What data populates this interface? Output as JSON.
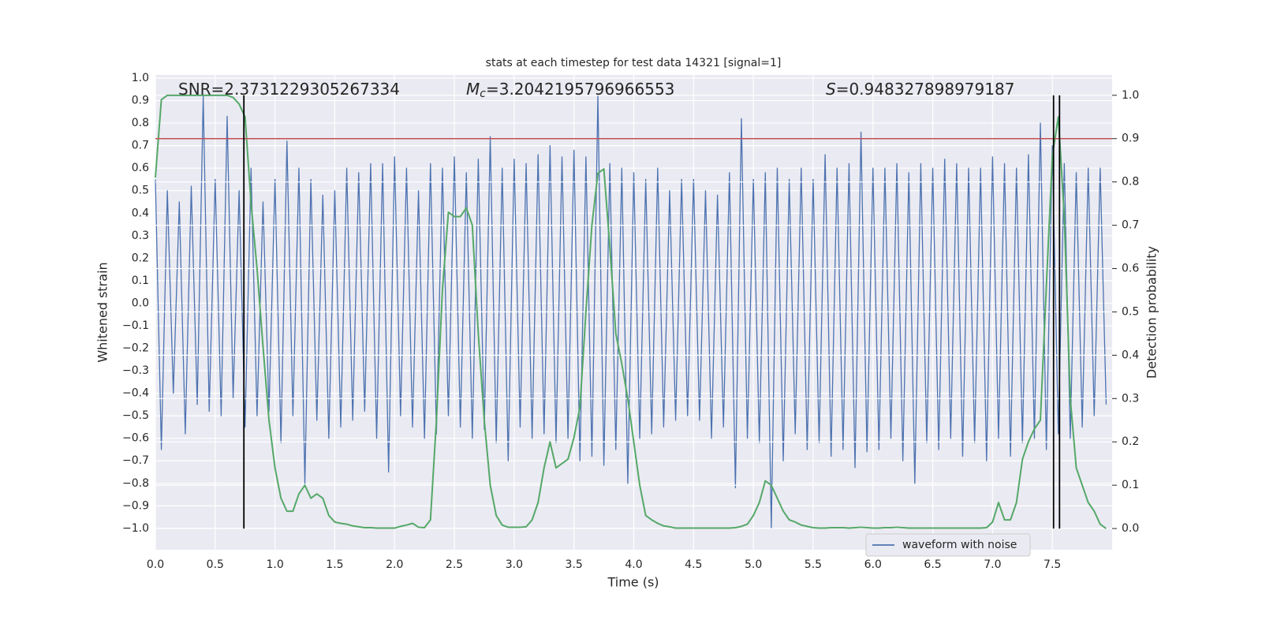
{
  "chart_data": {
    "type": "line",
    "title": "stats at each timestep for test data 14321 [signal=1]",
    "xlabel": "Time (s)",
    "ylabel": "Whitened strain",
    "y2label": "Detection probability",
    "annotations": [
      {
        "text": "SNR=2.3731229305267334"
      },
      {
        "symbol": "M",
        "subscript": "c",
        "text": "=3.2042195796966553"
      },
      {
        "symbol": "S",
        "text": "=0.948327898979187"
      }
    ],
    "x": [
      0,
      0.05,
      0.1,
      0.15,
      0.2,
      0.25,
      0.3,
      0.35,
      0.4,
      0.45,
      0.5,
      0.55,
      0.6,
      0.65,
      0.7,
      0.75,
      0.8,
      0.85,
      0.9,
      0.95,
      1.0,
      1.05,
      1.1,
      1.15,
      1.2,
      1.25,
      1.3,
      1.35,
      1.4,
      1.45,
      1.5,
      1.55,
      1.6,
      1.65,
      1.7,
      1.75,
      1.8,
      1.85,
      1.9,
      1.95,
      2.0,
      2.05,
      2.1,
      2.15,
      2.2,
      2.25,
      2.3,
      2.35,
      2.4,
      2.45,
      2.5,
      2.55,
      2.6,
      2.65,
      2.7,
      2.75,
      2.8,
      2.85,
      2.9,
      2.95,
      3.0,
      3.05,
      3.1,
      3.15,
      3.2,
      3.25,
      3.3,
      3.35,
      3.4,
      3.45,
      3.5,
      3.55,
      3.6,
      3.65,
      3.7,
      3.75,
      3.8,
      3.85,
      3.9,
      3.95,
      4.0,
      4.05,
      4.1,
      4.15,
      4.2,
      4.25,
      4.3,
      4.35,
      4.4,
      4.45,
      4.5,
      4.55,
      4.6,
      4.65,
      4.7,
      4.75,
      4.8,
      4.85,
      4.9,
      4.95,
      5.0,
      5.05,
      5.1,
      5.15,
      5.2,
      5.25,
      5.3,
      5.35,
      5.4,
      5.45,
      5.5,
      5.55,
      5.6,
      5.65,
      5.7,
      5.75,
      5.8,
      5.85,
      5.9,
      5.95,
      6.0,
      6.05,
      6.1,
      6.15,
      6.2,
      6.25,
      6.3,
      6.35,
      6.4,
      6.45,
      6.5,
      6.55,
      6.6,
      6.65,
      6.7,
      6.75,
      6.8,
      6.85,
      6.9,
      6.95,
      7.0,
      7.05,
      7.1,
      7.15,
      7.2,
      7.25,
      7.3,
      7.35,
      7.4,
      7.45,
      7.5,
      7.55,
      7.6,
      7.65,
      7.7,
      7.75,
      7.8,
      7.85,
      7.9,
      7.95
    ],
    "series": [
      {
        "name": "waveform with noise",
        "color": "#4c72b0",
        "axis": "y",
        "values": [
          0.55,
          -0.65,
          0.5,
          -0.4,
          0.45,
          -0.58,
          0.52,
          -0.45,
          0.92,
          -0.48,
          0.55,
          -0.5,
          0.83,
          -0.42,
          0.5,
          -0.55,
          0.6,
          -0.5,
          0.45,
          -0.48,
          0.55,
          -0.62,
          0.72,
          -0.5,
          0.6,
          -0.8,
          0.55,
          -0.52,
          0.48,
          -0.6,
          0.5,
          -0.55,
          0.6,
          -0.52,
          0.58,
          -0.48,
          0.62,
          -0.6,
          0.62,
          -0.75,
          0.65,
          -0.5,
          0.6,
          -0.55,
          0.5,
          -0.6,
          0.62,
          -0.58,
          0.6,
          -0.5,
          0.65,
          -0.55,
          0.58,
          -0.6,
          0.64,
          -0.56,
          0.74,
          -0.62,
          0.6,
          -0.7,
          0.64,
          -0.55,
          0.62,
          -0.6,
          0.66,
          -0.58,
          0.7,
          -0.62,
          0.65,
          -0.6,
          0.68,
          -0.7,
          0.65,
          -0.68,
          0.92,
          -0.72,
          0.62,
          -0.65,
          0.6,
          -0.8,
          0.58,
          -0.6,
          0.55,
          -0.58,
          0.6,
          -0.55,
          0.5,
          -0.52,
          0.55,
          -0.5,
          0.55,
          -0.52,
          0.5,
          -0.6,
          0.48,
          -0.55,
          0.58,
          -0.82,
          0.82,
          -0.6,
          0.55,
          -0.62,
          0.58,
          -1.0,
          0.6,
          -0.7,
          0.55,
          -0.58,
          0.6,
          -0.65,
          0.55,
          -0.62,
          0.66,
          -0.68,
          0.6,
          -0.65,
          0.62,
          -0.73,
          0.76,
          -0.66,
          0.6,
          -0.65,
          0.6,
          -0.6,
          0.62,
          -0.7,
          0.58,
          -0.8,
          0.62,
          -0.62,
          0.6,
          -0.65,
          0.64,
          -0.6,
          0.62,
          -0.68,
          0.6,
          -0.62,
          0.6,
          -0.7,
          0.65,
          -0.6,
          0.62,
          -0.68,
          0.6,
          -0.62,
          0.66,
          -0.6,
          0.8,
          -0.65,
          0.7,
          -0.58,
          0.62,
          -0.6,
          0.58,
          -0.55,
          0.6,
          -0.5,
          0.6,
          -0.45
        ]
      },
      {
        "color": "#55a868",
        "axis": "y2",
        "values": [
          0.81,
          0.99,
          1.0,
          1.0,
          1.0,
          1.0,
          1.0,
          1.0,
          1.0,
          1.0,
          1.0,
          1.0,
          1.0,
          0.995,
          0.98,
          0.95,
          0.75,
          0.6,
          0.42,
          0.25,
          0.14,
          0.07,
          0.04,
          0.04,
          0.08,
          0.1,
          0.07,
          0.08,
          0.07,
          0.03,
          0.015,
          0.012,
          0.01,
          0.006,
          0.004,
          0.002,
          0.002,
          0.001,
          0.001,
          0.001,
          0.001,
          0.005,
          0.008,
          0.012,
          0.003,
          0.002,
          0.02,
          0.25,
          0.55,
          0.73,
          0.72,
          0.72,
          0.74,
          0.7,
          0.45,
          0.25,
          0.1,
          0.03,
          0.008,
          0.003,
          0.003,
          0.003,
          0.004,
          0.02,
          0.06,
          0.14,
          0.2,
          0.14,
          0.15,
          0.16,
          0.21,
          0.28,
          0.5,
          0.7,
          0.82,
          0.83,
          0.65,
          0.45,
          0.38,
          0.3,
          0.2,
          0.1,
          0.03,
          0.02,
          0.012,
          0.006,
          0.004,
          0.001,
          0.001,
          0.001,
          0.001,
          0.001,
          0.001,
          0.001,
          0.001,
          0.001,
          0.001,
          0.002,
          0.005,
          0.01,
          0.03,
          0.06,
          0.11,
          0.1,
          0.07,
          0.04,
          0.02,
          0.015,
          0.008,
          0.005,
          0.002,
          0.001,
          0.001,
          0.002,
          0.002,
          0.002,
          0.001,
          0.002,
          0.003,
          0.002,
          0.001,
          0.001,
          0.002,
          0.002,
          0.003,
          0.002,
          0.001,
          0.001,
          0.001,
          0.001,
          0.001,
          0.001,
          0.001,
          0.001,
          0.001,
          0.001,
          0.001,
          0.001,
          0.001,
          0.002,
          0.015,
          0.06,
          0.02,
          0.02,
          0.06,
          0.16,
          0.2,
          0.23,
          0.25,
          0.56,
          0.86,
          0.95,
          0.72,
          0.3,
          0.14,
          0.1,
          0.06,
          0.04,
          0.01,
          0.0
        ]
      }
    ],
    "hlines": [
      {
        "y": 0.9,
        "axis": "y2",
        "color": "#c44e52"
      }
    ],
    "vlines": [
      {
        "x": 0.74,
        "ymin": 0,
        "ymax": 1,
        "axis": "y2",
        "color": "#000000"
      },
      {
        "x": 7.51,
        "ymin": 0,
        "ymax": 1,
        "axis": "y2",
        "color": "#000000"
      },
      {
        "x": 7.56,
        "ymin": 0,
        "ymax": 1,
        "axis": "y2",
        "color": "#000000"
      }
    ],
    "xlim": [
      0,
      8.0
    ],
    "xticks": [
      {
        "value": 0,
        "label": "0.0"
      },
      0.5,
      {
        "value": 1,
        "label": "1.0"
      },
      1.5,
      {
        "value": 2,
        "label": "2.0"
      },
      2.5,
      {
        "value": 3,
        "label": "3.0"
      },
      3.5,
      {
        "value": 4,
        "label": "4.0"
      },
      4.5,
      {
        "value": 5,
        "label": "5.0"
      },
      5.5,
      {
        "value": 6,
        "label": "6.0"
      },
      6.5,
      {
        "value": 7,
        "label": "7.0"
      },
      7.5
    ],
    "ylim": [
      -1.095,
      1.014
    ],
    "yticks": [
      {
        "value": -1,
        "label": "−1.0"
      },
      {
        "value": -0.9,
        "label": "−0.9"
      },
      {
        "value": -0.8,
        "label": "−0.8"
      },
      {
        "value": -0.7,
        "label": "−0.7"
      },
      {
        "value": -0.6,
        "label": "−0.6"
      },
      {
        "value": -0.5,
        "label": "−0.5"
      },
      {
        "value": -0.4,
        "label": "−0.4"
      },
      {
        "value": -0.3,
        "label": "−0.3"
      },
      {
        "value": -0.2,
        "label": "−0.2"
      },
      {
        "value": -0.1,
        "label": "−0.1"
      },
      {
        "value": 0,
        "label": "0.0"
      },
      0.1,
      0.2,
      0.3,
      0.4,
      0.5,
      0.6,
      0.7,
      0.8,
      0.9,
      {
        "value": 1,
        "label": "1.0"
      }
    ],
    "y2lim": [
      -0.049,
      1.047
    ],
    "y2ticks": [
      {
        "value": 0,
        "label": "0.0"
      },
      0.1,
      0.2,
      0.3,
      0.4,
      0.5,
      0.6,
      0.7,
      0.8,
      0.9,
      {
        "value": 1,
        "label": "1.0"
      }
    ],
    "grid": true,
    "legend": "lower right"
  }
}
